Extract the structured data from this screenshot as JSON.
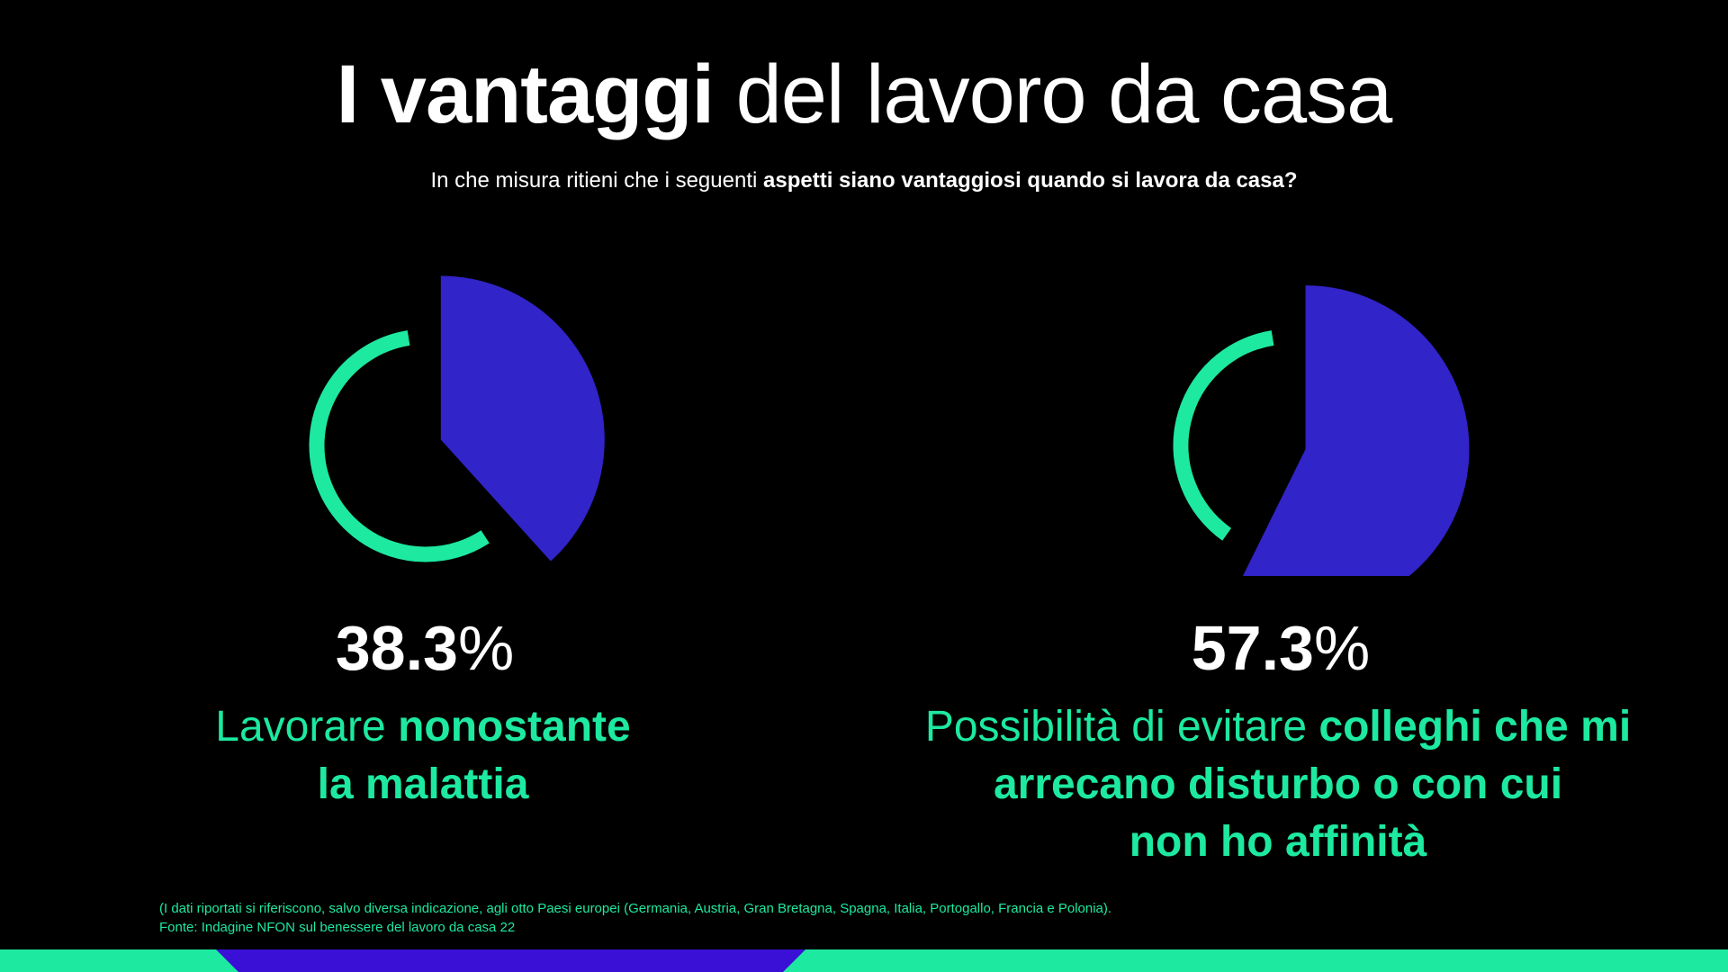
{
  "header": {
    "title_bold": "I vantaggi",
    "title_light": "del lavoro da casa",
    "subtitle_regular": "In che misura ritieni che i seguenti",
    "subtitle_bold": "aspetti siano vantaggiosi quando si lavora da casa?"
  },
  "colors": {
    "ring": "#1de9a0",
    "slice": "#3124c8",
    "background": "#000000",
    "bar_green": "#1de9a0",
    "bar_purple": "#3a0fd6"
  },
  "chart_data": [
    {
      "type": "pie",
      "value_percent": 38.3,
      "value_label": "38.3",
      "unit": "%",
      "caption_light": "Lavorare",
      "caption_bold_line1": "nonostante",
      "caption_bold_line2": "la malattia"
    },
    {
      "type": "pie",
      "value_percent": 57.3,
      "value_label": "57.3",
      "unit": "%",
      "caption_light": "Possibilità di evitare",
      "caption_bold_line1": "colleghi che mi",
      "caption_bold_line2": "arrecano disturbo o con cui",
      "caption_bold_line3": "non ho affinità"
    }
  ],
  "footnote": {
    "line1": "(I dati riportati si riferiscono, salvo diversa indicazione, agli otto Paesi europei (Germania, Austria, Gran Bretagna, Spagna, Italia, Portogallo, Francia e Polonia).",
    "line2": "Fonte: Indagine NFON sul benessere del lavoro da casa 22"
  }
}
